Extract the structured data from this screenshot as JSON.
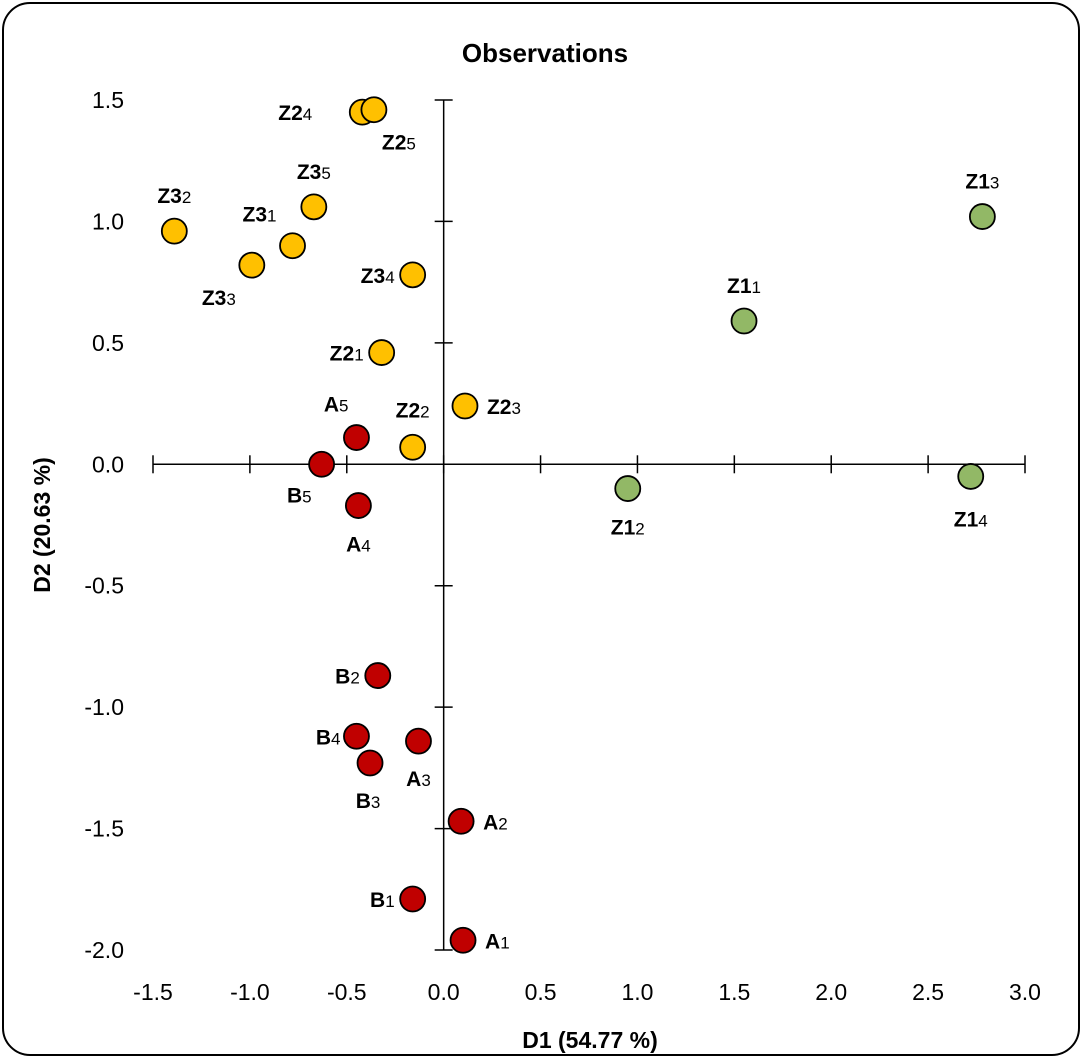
{
  "chart_data": {
    "type": "scatter",
    "title": "Observations",
    "xlabel": "D1 (54.77 %)",
    "ylabel": "D2 (20.63 %)",
    "xlim": [
      -1.5,
      3.0
    ],
    "ylim": [
      -2.0,
      1.5
    ],
    "x_ticks": [
      "-1.5",
      "-1.0",
      "-0.5",
      "0.0",
      "0.5",
      "1.0",
      "1.5",
      "2.0",
      "2.5",
      "3.0"
    ],
    "y_ticks": [
      "1.5",
      "1.0",
      "0.5",
      "0.0",
      "-0.5",
      "-1.0",
      "-1.5",
      "-2.0"
    ],
    "grid": false,
    "legend": "none",
    "colors": {
      "red": "#c00000",
      "orange": "#ffc000",
      "green": "#92b866"
    },
    "points": [
      {
        "label": "Z2",
        "sub": "4",
        "x": -0.42,
        "y": 1.45,
        "color": "orange"
      },
      {
        "label": "Z2",
        "sub": "5",
        "x": -0.36,
        "y": 1.46,
        "color": "orange"
      },
      {
        "label": "Z3",
        "sub": "5",
        "x": -0.67,
        "y": 1.06,
        "color": "orange"
      },
      {
        "label": "Z3",
        "sub": "2",
        "x": -1.39,
        "y": 0.96,
        "color": "orange"
      },
      {
        "label": "Z3",
        "sub": "1",
        "x": -0.78,
        "y": 0.9,
        "color": "orange"
      },
      {
        "label": "Z3",
        "sub": "3",
        "x": -0.99,
        "y": 0.82,
        "color": "orange"
      },
      {
        "label": "Z3",
        "sub": "4",
        "x": -0.16,
        "y": 0.78,
        "color": "orange"
      },
      {
        "label": "Z2",
        "sub": "1",
        "x": -0.32,
        "y": 0.46,
        "color": "orange"
      },
      {
        "label": "Z2",
        "sub": "3",
        "x": 0.11,
        "y": 0.24,
        "color": "orange"
      },
      {
        "label": "Z2",
        "sub": "2",
        "x": -0.16,
        "y": 0.07,
        "color": "orange"
      },
      {
        "label": "Z1",
        "sub": "3",
        "x": 2.78,
        "y": 1.02,
        "color": "green"
      },
      {
        "label": "Z1",
        "sub": "1",
        "x": 1.55,
        "y": 0.59,
        "color": "green"
      },
      {
        "label": "Z1",
        "sub": "2",
        "x": 0.95,
        "y": -0.1,
        "color": "green"
      },
      {
        "label": "Z1",
        "sub": "4",
        "x": 2.72,
        "y": -0.05,
        "color": "green"
      },
      {
        "label": "A",
        "sub": "5",
        "x": -0.45,
        "y": 0.11,
        "color": "red"
      },
      {
        "label": "B",
        "sub": "5",
        "x": -0.63,
        "y": 0.0,
        "color": "red"
      },
      {
        "label": "A",
        "sub": "4",
        "x": -0.44,
        "y": -0.17,
        "color": "red"
      },
      {
        "label": "B",
        "sub": "2",
        "x": -0.34,
        "y": -0.87,
        "color": "red"
      },
      {
        "label": "B",
        "sub": "4",
        "x": -0.45,
        "y": -1.12,
        "color": "red"
      },
      {
        "label": "A",
        "sub": "3",
        "x": -0.13,
        "y": -1.14,
        "color": "red"
      },
      {
        "label": "B",
        "sub": "3",
        "x": -0.38,
        "y": -1.23,
        "color": "red"
      },
      {
        "label": "A",
        "sub": "2",
        "x": 0.09,
        "y": -1.47,
        "color": "red"
      },
      {
        "label": "B",
        "sub": "1",
        "x": -0.16,
        "y": -1.79,
        "color": "red"
      },
      {
        "label": "A",
        "sub": "1",
        "x": 0.1,
        "y": -1.96,
        "color": "red"
      }
    ]
  }
}
